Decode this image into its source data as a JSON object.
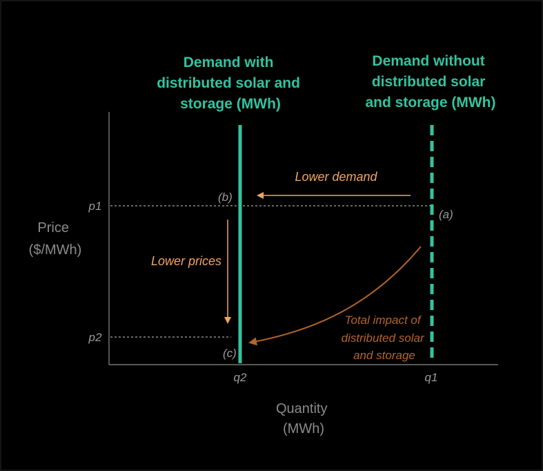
{
  "colors": {
    "background": "#000000",
    "demand_line": "#33c3a0",
    "axis": "#8c8c8c",
    "arrow_orange": "#f4a460",
    "arrow_brown": "#b5652a"
  },
  "titles": {
    "with": [
      "Demand with",
      "distributed solar and",
      "storage (MWh)"
    ],
    "without": [
      "Demand without",
      "distributed solar",
      "and storage (MWh)"
    ]
  },
  "axes": {
    "y_label": [
      "Price",
      "($/MWh)"
    ],
    "x_label": [
      "Quantity",
      "(MWh)"
    ],
    "y_ticks": {
      "p1": "p1",
      "p2": "p2"
    },
    "x_ticks": {
      "q2": "q2",
      "q1": "q1"
    }
  },
  "points": {
    "a": "(a)",
    "b": "(b)",
    "c": "(c)"
  },
  "annotations": {
    "lower_demand": "Lower demand",
    "lower_prices": "Lower prices",
    "total_impact": [
      "Total impact of",
      "distributed solar",
      "and storage"
    ]
  }
}
